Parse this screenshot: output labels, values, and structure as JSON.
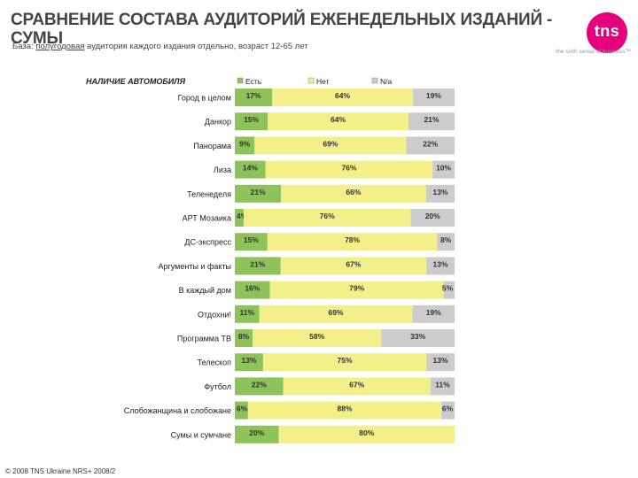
{
  "header": {
    "title": "СРАВНЕНИЕ СОСТАВА АУДИТОРИЙ ЕЖЕНЕДЕЛЬНЫХ ИЗДАНИЙ - СУМЫ",
    "base_prefix": "База:",
    "base_underlined": "полугодовая",
    "base_rest": "аудитория каждого издания отдельно, возраст 12-65 лет"
  },
  "logo": {
    "text": "tns",
    "tagline": "the sixth sense of business™"
  },
  "footer": {
    "text": "© 2008 TNS Ukraine NRS+ 2008/2"
  },
  "colors": {
    "yes": "#8dc35a",
    "no": "#f3f08a",
    "na": "#cccccc",
    "brand": "#e6007e"
  },
  "chart_data": {
    "type": "bar",
    "orientation": "horizontal",
    "stacked": true,
    "title": "НАЛИЧИЕ АВТОМОБИЛЯ",
    "legend_position": "top",
    "unit": "%",
    "categories": [
      "Город в целом",
      "Данкор",
      "Панорама",
      "Лиза",
      "Теленеделя",
      "АРТ Мозаика",
      "ДС-экспресс",
      "Аргументы и факты",
      "В каждый дом",
      "Отдохни!",
      "Программа ТВ",
      "Телескоп",
      "Футбол",
      "Слобожанщина и слобожане",
      "Сумы и сумчане"
    ],
    "series": [
      {
        "name": "Есть",
        "values": [
          17,
          15,
          9,
          14,
          21,
          4,
          15,
          21,
          16,
          11,
          8,
          13,
          22,
          6,
          20
        ]
      },
      {
        "name": "Нет",
        "values": [
          64,
          64,
          69,
          76,
          66,
          76,
          78,
          67,
          79,
          69,
          58,
          75,
          67,
          88,
          80
        ]
      },
      {
        "name": "N/a",
        "values": [
          19,
          21,
          22,
          10,
          13,
          20,
          8,
          13,
          5,
          19,
          33,
          13,
          11,
          6,
          null
        ]
      }
    ]
  }
}
